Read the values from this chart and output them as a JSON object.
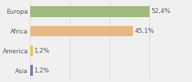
{
  "categories": [
    "Asia",
    "America",
    "Africa",
    "Europa"
  ],
  "values": [
    1.2,
    1.2,
    45.1,
    52.4
  ],
  "labels": [
    "1,2%",
    "1,2%",
    "45,1%",
    "52,4%"
  ],
  "bar_colors": [
    "#6e7fbc",
    "#e8c84a",
    "#e8b882",
    "#9eba7e"
  ],
  "background_color": "#f0f0f0",
  "xlim": [
    0,
    70
  ],
  "label_fontsize": 6.5,
  "tick_fontsize": 6.5,
  "bar_height": 0.55
}
